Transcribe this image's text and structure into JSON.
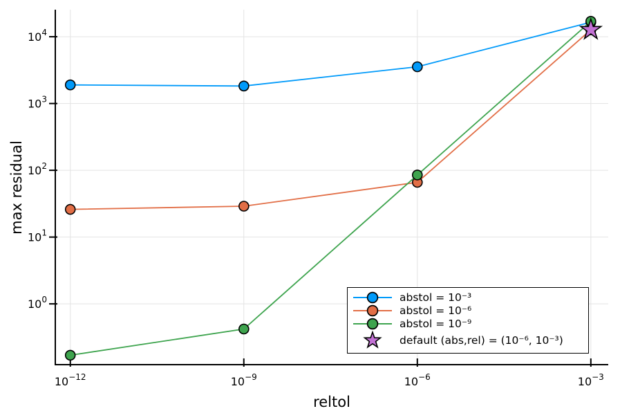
{
  "figure": {
    "background": "#FFFFFF"
  },
  "chart_data": {
    "type": "line",
    "title": "",
    "x_scale": "log",
    "y_scale": "log",
    "grid": true,
    "grid_color": "#E3E3E3",
    "axis_color": "#000000",
    "legend_position": "bottom-right-inside",
    "x": [
      1e-12,
      1e-09,
      1e-06,
      0.001
    ],
    "xlim": [
      5.5e-13,
      0.002
    ],
    "ylim": [
      0.123,
      25400
    ],
    "x_axis": {
      "label": "reltol",
      "ticks": [
        {
          "base": "10",
          "exp": "−12",
          "value": 1e-12
        },
        {
          "base": "10",
          "exp": "−9",
          "value": 1e-09
        },
        {
          "base": "10",
          "exp": "−6",
          "value": 1e-06
        },
        {
          "base": "10",
          "exp": "−3",
          "value": 0.001
        }
      ]
    },
    "y_axis": {
      "label": "max residual",
      "ticks": [
        {
          "base": "10",
          "exp": "0",
          "value": 1
        },
        {
          "base": "10",
          "exp": "1",
          "value": 10
        },
        {
          "base": "10",
          "exp": "2",
          "value": 100
        },
        {
          "base": "10",
          "exp": "3",
          "value": 1000
        },
        {
          "base": "10",
          "exp": "4",
          "value": 10000
        }
      ]
    },
    "series": [
      {
        "name": "abstol = 10⁻³",
        "color": "#009AFA",
        "marker": "circle",
        "values": [
          1900,
          1830,
          3550,
          16500
        ]
      },
      {
        "name": "abstol = 10⁻⁶",
        "color": "#E26E46",
        "marker": "circle",
        "values": [
          26,
          29,
          66,
          12700
        ]
      },
      {
        "name": "abstol = 10⁻⁹",
        "color": "#3EA44E",
        "marker": "circle",
        "values": [
          0.17,
          0.42,
          85,
          17000
        ]
      }
    ],
    "star": {
      "name": "default (abs,rel) = (10⁻⁶, 10⁻³)",
      "color": "#C271D4",
      "x": 0.001,
      "y": 12700
    }
  }
}
